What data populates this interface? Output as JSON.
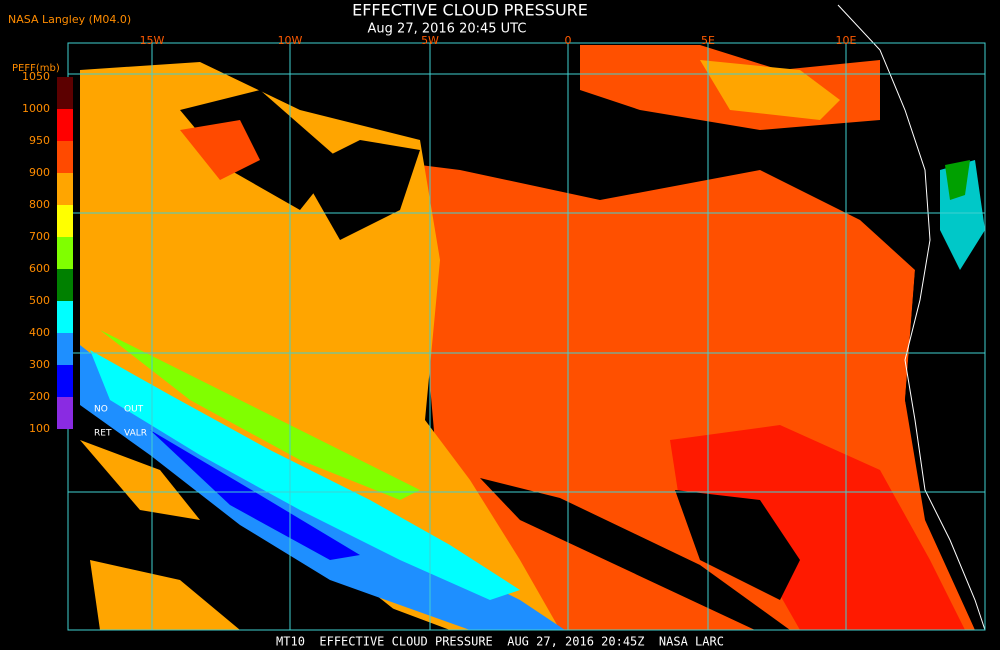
{
  "header": {
    "source": "NASA Langley (M04.0)",
    "title": "EFFECTIVE CLOUD PRESSURE",
    "subtitle": "Aug 27, 2016 20:45 UTC"
  },
  "legend": {
    "title": "PEFF(mb)",
    "ticks": [
      1050,
      1000,
      950,
      900,
      800,
      700,
      600,
      500,
      400,
      300,
      200,
      100
    ],
    "colors": [
      "#5c0000",
      "#ff0000",
      "#ff4a00",
      "#ffa500",
      "#ffff00",
      "#80ff00",
      "#008000",
      "#00ffff",
      "#1e8fff",
      "#0000ff",
      "#8a2be2"
    ],
    "no_data_labels": [
      "NO",
      "OUT",
      "RET",
      "VALR"
    ]
  },
  "map": {
    "longitude_labels": [
      "15W",
      "10W",
      "5W",
      "0",
      "5E",
      "10E"
    ]
  },
  "footer": "MT10  EFFECTIVE CLOUD PRESSURE  AUG 27, 2016 20:45Z  NASA LARC"
}
